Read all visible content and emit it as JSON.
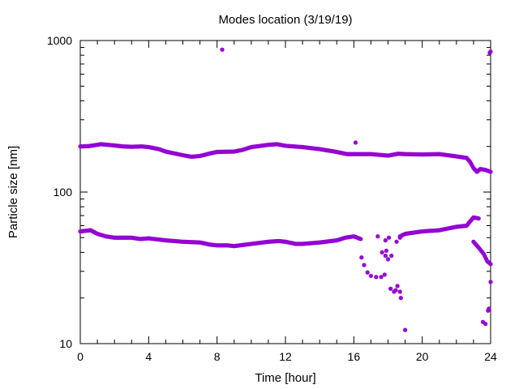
{
  "chart_data": {
    "type": "scatter",
    "title": "Modes location (3/19/19)",
    "xlabel": "Time [hour]",
    "ylabel": "Particle size [nm]",
    "xlim": [
      0,
      24
    ],
    "ylim": [
      10,
      1000
    ],
    "yscale": "log",
    "grid": false,
    "legend": "none",
    "x_ticks": [
      {
        "value": 0,
        "label": "0"
      },
      {
        "value": 4,
        "label": "4"
      },
      {
        "value": 8,
        "label": "8"
      },
      {
        "value": 12,
        "label": "12"
      },
      {
        "value": 16,
        "label": "16"
      },
      {
        "value": 20,
        "label": "20"
      },
      {
        "value": 24,
        "label": "24"
      }
    ],
    "y_ticks": [
      {
        "value": 10,
        "label": "10"
      },
      {
        "value": 100,
        "label": "100"
      },
      {
        "value": 1000,
        "label": "1000"
      }
    ],
    "marker_color": "#9400D3",
    "series": [
      {
        "curve": [
          [
            0,
            200
          ],
          [
            0.5,
            201
          ],
          [
            1.0,
            205
          ],
          [
            1.2,
            207
          ],
          [
            2.0,
            203
          ],
          [
            2.5,
            200
          ],
          [
            3.0,
            199
          ],
          [
            3.6,
            200
          ],
          [
            4.0,
            198
          ],
          [
            4.6,
            192
          ],
          [
            5.0,
            185
          ],
          [
            6.0,
            175
          ],
          [
            6.5,
            171
          ],
          [
            7.0,
            173
          ],
          [
            7.6,
            180
          ],
          [
            8.0,
            184
          ],
          [
            9.0,
            185
          ],
          [
            9.5,
            190
          ],
          [
            10.0,
            198
          ],
          [
            11.0,
            205
          ],
          [
            11.5,
            207
          ],
          [
            12.0,
            202
          ],
          [
            13.0,
            198
          ],
          [
            14.0,
            192
          ],
          [
            15.0,
            184
          ],
          [
            15.6,
            178
          ],
          [
            16.0,
            178
          ],
          [
            17.0,
            178
          ],
          [
            18.0,
            174
          ],
          [
            18.6,
            179
          ],
          [
            19.0,
            178
          ],
          [
            20.0,
            177
          ],
          [
            21.0,
            178
          ],
          [
            22.0,
            172
          ],
          [
            22.6,
            168
          ],
          [
            22.8,
            158
          ],
          [
            23.0,
            144
          ],
          [
            23.2,
            136
          ],
          [
            23.4,
            142
          ],
          [
            23.7,
            140
          ],
          [
            24.0,
            136
          ]
        ],
        "step": 0.07,
        "extra": [
          [
            8.3,
            870
          ],
          [
            16.1,
            212
          ],
          [
            23.95,
            830
          ],
          [
            24.0,
            845
          ]
        ]
      },
      {
        "curve": [
          [
            0,
            55
          ],
          [
            0.6,
            56
          ],
          [
            1.0,
            53
          ],
          [
            1.5,
            51
          ],
          [
            2.0,
            50
          ],
          [
            3.0,
            50
          ],
          [
            3.5,
            49
          ],
          [
            4.0,
            49.5
          ],
          [
            5.0,
            48
          ],
          [
            6.0,
            47
          ],
          [
            7.0,
            46.5
          ],
          [
            7.6,
            45
          ],
          [
            8.0,
            44.5
          ],
          [
            8.6,
            44.5
          ],
          [
            9.0,
            44
          ],
          [
            10.0,
            45.5
          ],
          [
            11.0,
            47
          ],
          [
            11.6,
            47.5
          ],
          [
            12.0,
            47
          ],
          [
            12.6,
            45.5
          ],
          [
            13.0,
            45.5
          ],
          [
            14.0,
            46.5
          ],
          [
            15.0,
            48
          ],
          [
            15.5,
            50
          ],
          [
            16.0,
            51
          ],
          [
            16.4,
            49
          ]
        ],
        "step": 0.07,
        "extra": [
          [
            16.45,
            37
          ],
          [
            16.6,
            33
          ],
          [
            16.8,
            29.5
          ],
          [
            17.0,
            28
          ],
          [
            17.3,
            27.5
          ],
          [
            17.6,
            27.5
          ],
          [
            17.8,
            28.5
          ],
          [
            17.4,
            51
          ],
          [
            17.65,
            40
          ],
          [
            17.85,
            38
          ],
          [
            17.9,
            41
          ],
          [
            17.85,
            48
          ],
          [
            18.05,
            50
          ],
          [
            18.0,
            36
          ],
          [
            18.2,
            38
          ],
          [
            18.15,
            23
          ],
          [
            18.35,
            22
          ],
          [
            18.45,
            22.5
          ],
          [
            18.55,
            24
          ],
          [
            18.7,
            22
          ],
          [
            18.75,
            20
          ],
          [
            18.5,
            47
          ],
          [
            18.7,
            50
          ],
          [
            19.0,
            12.3
          ],
          [
            23.55,
            13.9
          ],
          [
            23.7,
            13.5
          ],
          [
            23.85,
            16.5
          ],
          [
            23.9,
            17
          ],
          [
            24.0,
            25.5
          ]
        ],
        "curve2": [
          [
            18.7,
            51
          ],
          [
            19.0,
            53
          ],
          [
            19.5,
            54
          ],
          [
            20.0,
            55
          ],
          [
            21.0,
            56
          ],
          [
            22.0,
            59
          ],
          [
            22.6,
            60
          ],
          [
            22.8,
            64
          ],
          [
            23.0,
            68
          ],
          [
            23.3,
            67
          ]
        ],
        "curve3": [
          [
            23.0,
            47
          ],
          [
            23.3,
            43
          ],
          [
            23.6,
            39
          ],
          [
            23.8,
            35
          ],
          [
            24.0,
            33.5
          ]
        ]
      }
    ]
  }
}
